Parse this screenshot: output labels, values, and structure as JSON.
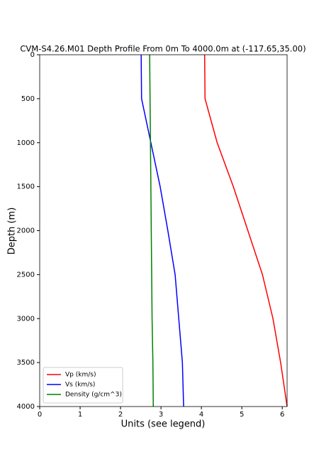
{
  "chart_data": {
    "type": "line",
    "title": "CVM-S4.26.M01 Depth Profile From 0m To 4000.0m at (-117.65,35.00)",
    "x_label": "Units (see legend)",
    "y_label": "Depth (m)",
    "depths": [
      0,
      500,
      1000,
      1500,
      2000,
      2500,
      3000,
      3500,
      4000
    ],
    "series": [
      {
        "name": "Vp (km/s)",
        "color": "#ff0000",
        "values": [
          4.08,
          4.09,
          4.39,
          4.79,
          5.15,
          5.51,
          5.77,
          5.96,
          6.12
        ]
      },
      {
        "name": "Vs (km/s)",
        "color": "#0000ff",
        "values": [
          2.51,
          2.52,
          2.75,
          2.98,
          3.17,
          3.35,
          3.44,
          3.53,
          3.56
        ]
      },
      {
        "name": "Density (g/cm^3)",
        "color": "#008000",
        "values": [
          2.72,
          2.73,
          2.74,
          2.75,
          2.76,
          2.77,
          2.78,
          2.8,
          2.81
        ]
      }
    ],
    "xlim": [
      0,
      6.12
    ],
    "xticks": [
      0,
      1,
      2,
      3,
      4,
      5,
      6
    ],
    "ylim": [
      0,
      4000
    ],
    "yticks": [
      0,
      500,
      1000,
      1500,
      2000,
      2500,
      3000,
      3500,
      4000
    ],
    "y_inverted": true,
    "legend": "lower left"
  }
}
